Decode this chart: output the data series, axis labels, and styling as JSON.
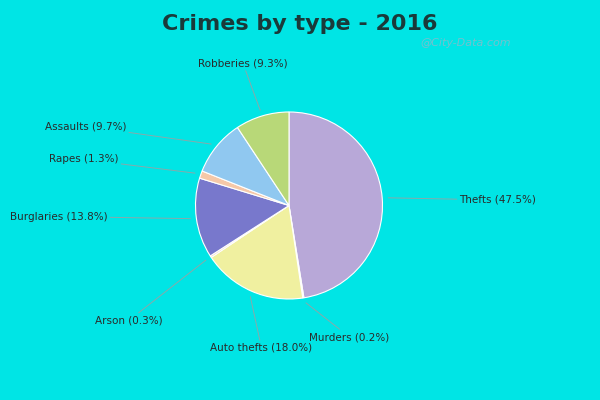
{
  "title": "Crimes by type - 2016",
  "title_fontsize": 16,
  "title_fontweight": "bold",
  "background_outer": "#00e5e5",
  "background_inner_color": "#d4ede4",
  "labels": [
    "Thefts (47.5%)",
    "Murders (0.2%)",
    "Auto thefts (18.0%)",
    "Arson (0.3%)",
    "Burglaries (13.8%)",
    "Rapes (1.3%)",
    "Assaults (9.7%)",
    "Robberies (9.3%)"
  ],
  "percentages": [
    47.5,
    0.2,
    18.0,
    0.3,
    13.8,
    1.3,
    9.7,
    9.3
  ],
  "colors": [
    "#b8a8d8",
    "#f0e898",
    "#f0f0a0",
    "#f5c8b0",
    "#7878cc",
    "#f5c8a8",
    "#90c8f0",
    "#b8d878"
  ],
  "watermark": "@City-Data.com",
  "figsize": [
    6.0,
    4.0
  ],
  "dpi": 100
}
